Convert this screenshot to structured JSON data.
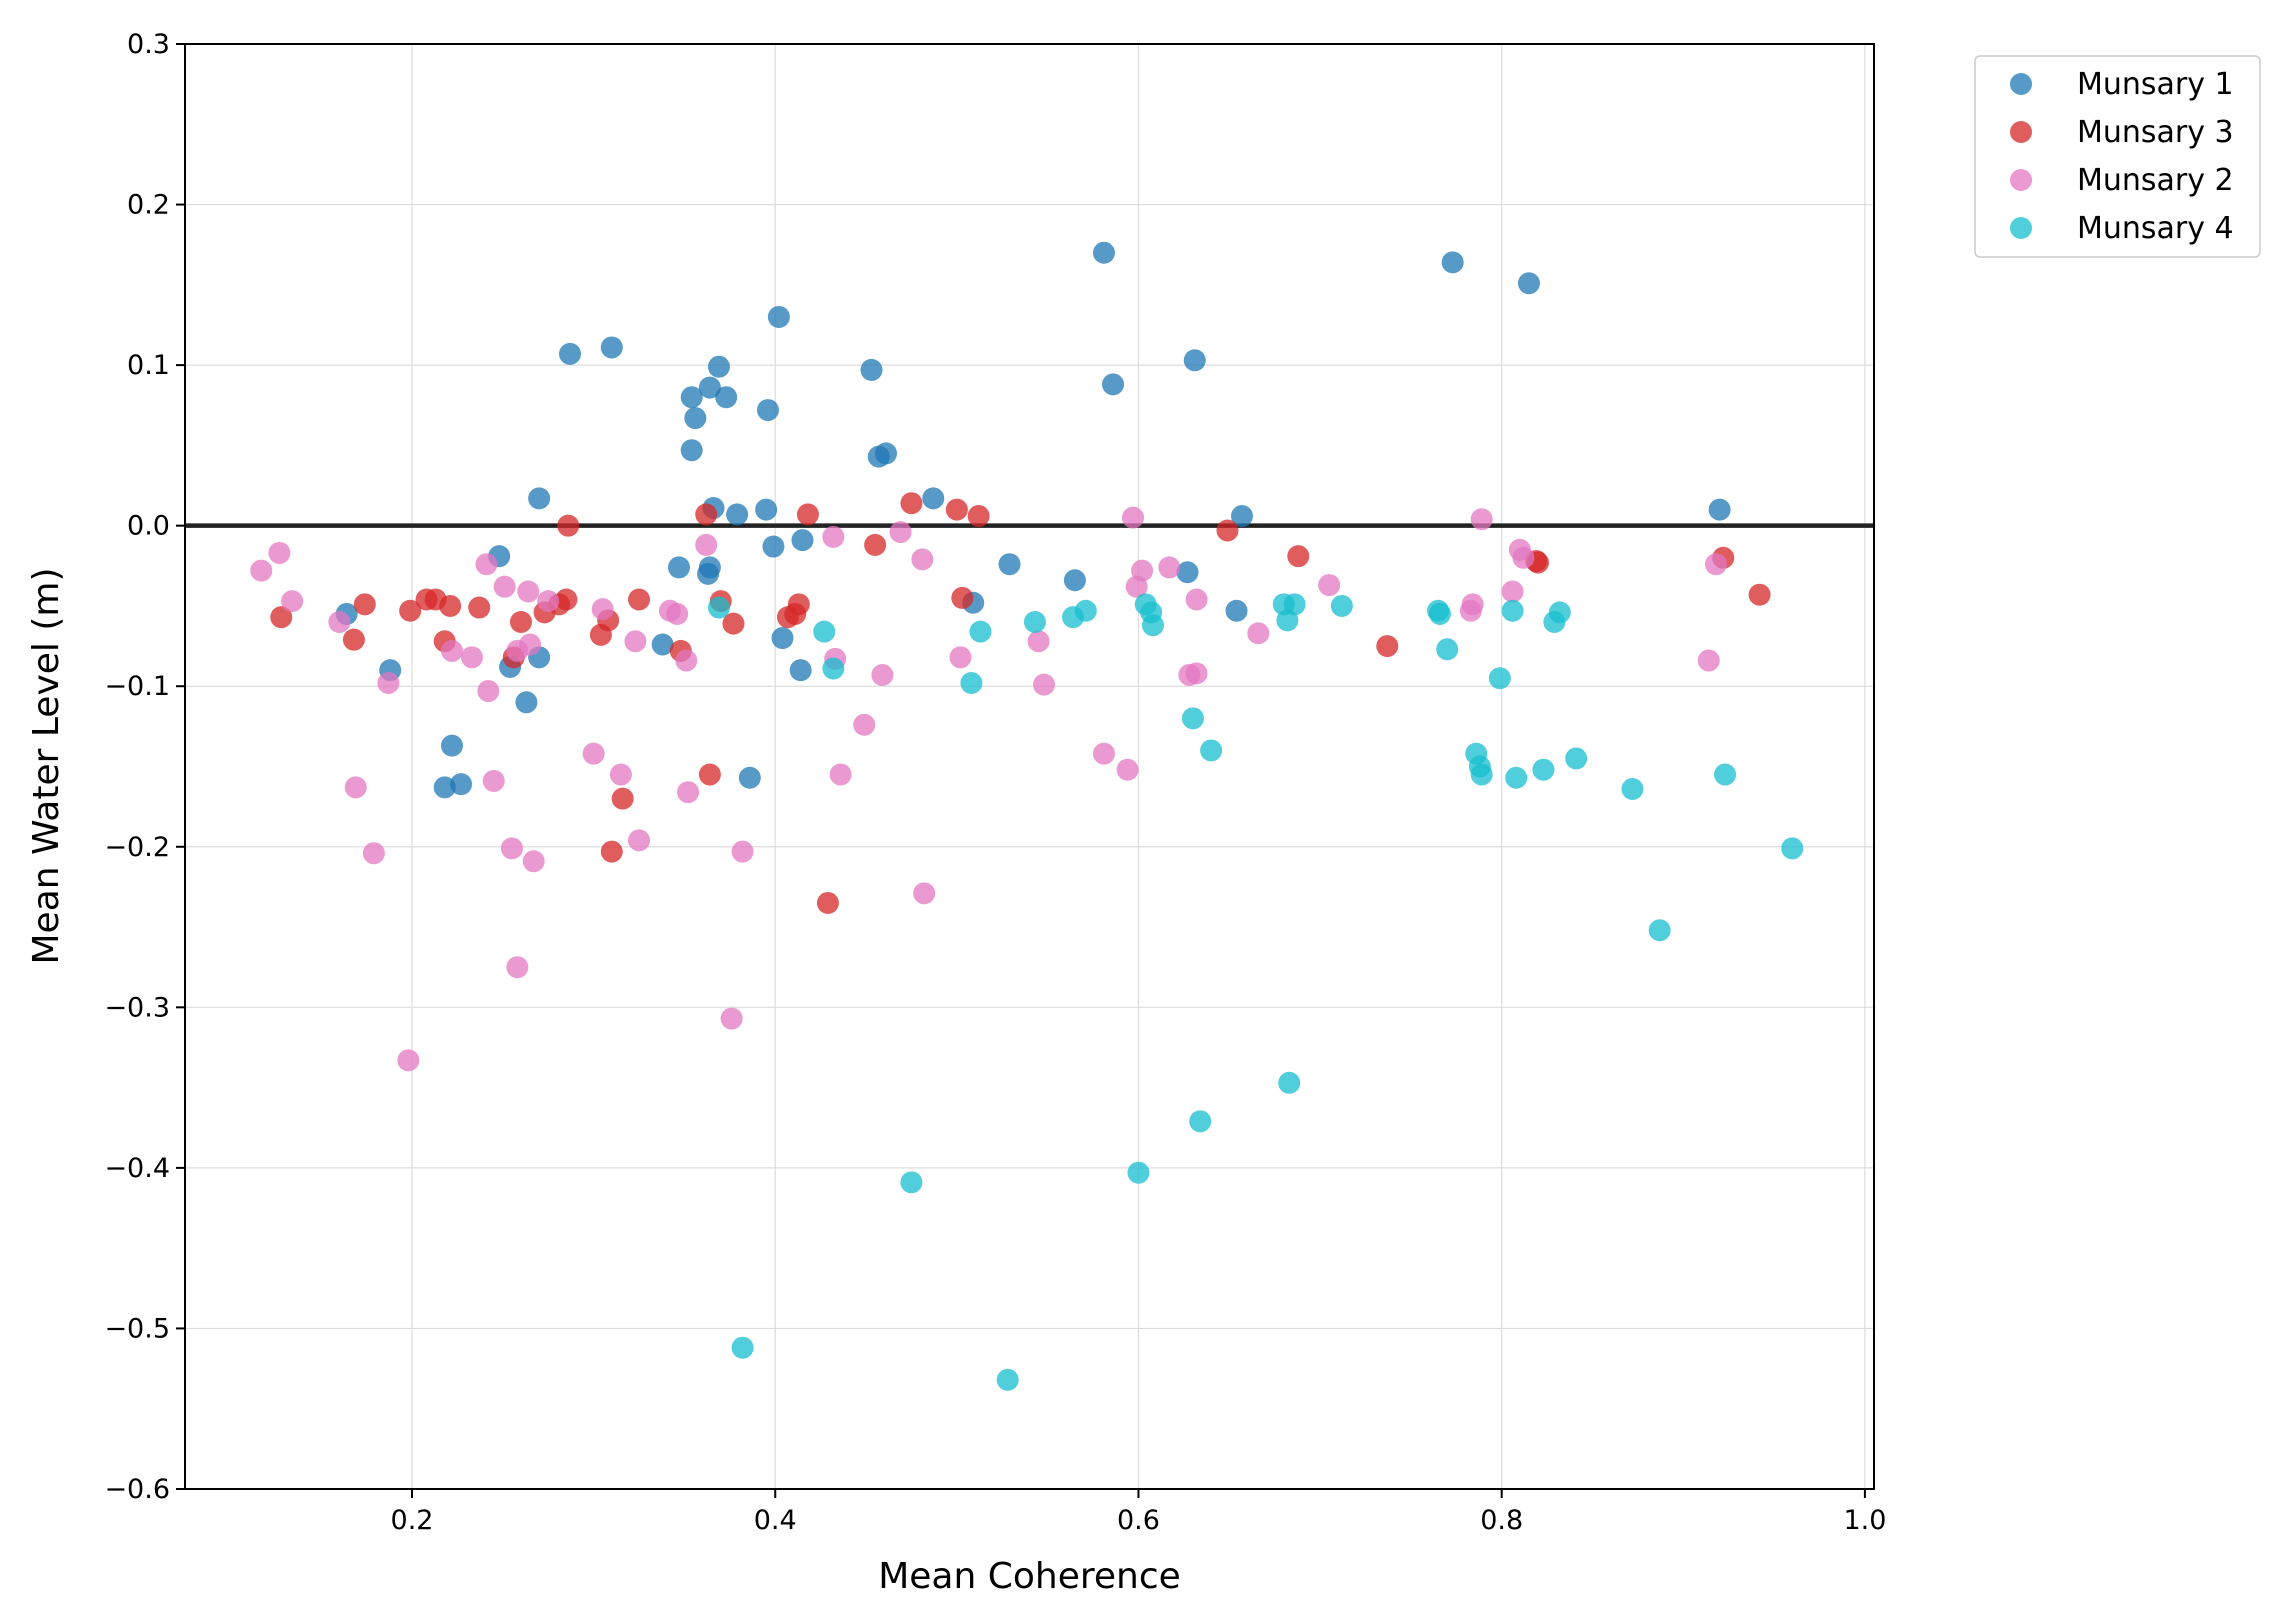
{
  "chart_data": {
    "type": "scatter",
    "title": "",
    "xlabel": "Mean Coherence",
    "ylabel": "Mean Water Level (m)",
    "xlim": [
      0.075,
      1.005
    ],
    "ylim": [
      -0.6,
      0.3
    ],
    "xticks": [
      0.2,
      0.4,
      0.6,
      0.8,
      1.0
    ],
    "xtick_labels": [
      "0.2",
      "0.4",
      "0.6",
      "0.8",
      "1.0"
    ],
    "yticks": [
      -0.6,
      -0.5,
      -0.4,
      -0.3,
      -0.2,
      -0.1,
      0.0,
      0.1,
      0.2,
      0.3
    ],
    "ytick_labels": [
      "−0.6",
      "−0.5",
      "−0.4",
      "−0.3",
      "−0.2",
      "−0.1",
      "0.0",
      "0.1",
      "0.2",
      "0.3"
    ],
    "grid": true,
    "legend_position": "outside-top-right",
    "reference_line_y": 0.0,
    "series": [
      {
        "name": "Munsary 1",
        "color": "#1f77b4",
        "points": [
          [
            0.164,
            -0.055
          ],
          [
            0.188,
            -0.09
          ],
          [
            0.218,
            -0.163
          ],
          [
            0.222,
            -0.137
          ],
          [
            0.227,
            -0.161
          ],
          [
            0.248,
            -0.019
          ],
          [
            0.254,
            -0.088
          ],
          [
            0.263,
            -0.11
          ],
          [
            0.27,
            -0.082
          ],
          [
            0.27,
            0.017
          ],
          [
            0.287,
            0.107
          ],
          [
            0.31,
            0.111
          ],
          [
            0.338,
            -0.074
          ],
          [
            0.347,
            -0.026
          ],
          [
            0.354,
            0.047
          ],
          [
            0.354,
            0.08
          ],
          [
            0.356,
            0.067
          ],
          [
            0.363,
            -0.03
          ],
          [
            0.364,
            -0.026
          ],
          [
            0.364,
            0.086
          ],
          [
            0.366,
            0.011
          ],
          [
            0.369,
            0.099
          ],
          [
            0.373,
            0.08
          ],
          [
            0.379,
            0.007
          ],
          [
            0.386,
            -0.157
          ],
          [
            0.395,
            0.01
          ],
          [
            0.396,
            0.072
          ],
          [
            0.399,
            -0.013
          ],
          [
            0.402,
            0.13
          ],
          [
            0.404,
            -0.07
          ],
          [
            0.414,
            -0.09
          ],
          [
            0.415,
            -0.009
          ],
          [
            0.453,
            0.097
          ],
          [
            0.457,
            0.043
          ],
          [
            0.461,
            0.045
          ],
          [
            0.487,
            0.017
          ],
          [
            0.509,
            -0.048
          ],
          [
            0.529,
            -0.024
          ],
          [
            0.565,
            -0.034
          ],
          [
            0.581,
            0.17
          ],
          [
            0.586,
            0.088
          ],
          [
            0.627,
            -0.029
          ],
          [
            0.631,
            0.103
          ],
          [
            0.654,
            -0.053
          ],
          [
            0.657,
            0.006
          ],
          [
            0.773,
            0.164
          ],
          [
            0.815,
            0.151
          ],
          [
            0.92,
            0.01
          ]
        ]
      },
      {
        "name": "Munsary 3",
        "color": "#d62728",
        "points": [
          [
            0.128,
            -0.057
          ],
          [
            0.168,
            -0.071
          ],
          [
            0.174,
            -0.049
          ],
          [
            0.199,
            -0.053
          ],
          [
            0.208,
            -0.046
          ],
          [
            0.213,
            -0.046
          ],
          [
            0.218,
            -0.072
          ],
          [
            0.221,
            -0.05
          ],
          [
            0.237,
            -0.051
          ],
          [
            0.256,
            -0.082
          ],
          [
            0.26,
            -0.06
          ],
          [
            0.273,
            -0.054
          ],
          [
            0.281,
            -0.049
          ],
          [
            0.285,
            -0.046
          ],
          [
            0.286,
            0.0
          ],
          [
            0.304,
            -0.068
          ],
          [
            0.308,
            -0.059
          ],
          [
            0.31,
            -0.203
          ],
          [
            0.316,
            -0.17
          ],
          [
            0.325,
            -0.046
          ],
          [
            0.348,
            -0.078
          ],
          [
            0.362,
            0.007
          ],
          [
            0.364,
            -0.155
          ],
          [
            0.37,
            -0.047
          ],
          [
            0.377,
            -0.061
          ],
          [
            0.407,
            -0.057
          ],
          [
            0.411,
            -0.055
          ],
          [
            0.413,
            -0.049
          ],
          [
            0.418,
            0.007
          ],
          [
            0.429,
            -0.235
          ],
          [
            0.455,
            -0.012
          ],
          [
            0.475,
            0.014
          ],
          [
            0.5,
            0.01
          ],
          [
            0.503,
            -0.045
          ],
          [
            0.512,
            0.006
          ],
          [
            0.649,
            -0.003
          ],
          [
            0.688,
            -0.019
          ],
          [
            0.737,
            -0.075
          ],
          [
            0.819,
            -0.022
          ],
          [
            0.82,
            -0.023
          ],
          [
            0.922,
            -0.02
          ],
          [
            0.942,
            -0.043
          ]
        ]
      },
      {
        "name": "Munsary 2",
        "color": "#e377c2",
        "points": [
          [
            0.117,
            -0.028
          ],
          [
            0.127,
            -0.017
          ],
          [
            0.134,
            -0.047
          ],
          [
            0.16,
            -0.06
          ],
          [
            0.169,
            -0.163
          ],
          [
            0.179,
            -0.204
          ],
          [
            0.187,
            -0.098
          ],
          [
            0.198,
            -0.333
          ],
          [
            0.222,
            -0.078
          ],
          [
            0.233,
            -0.082
          ],
          [
            0.241,
            -0.024
          ],
          [
            0.242,
            -0.103
          ],
          [
            0.245,
            -0.159
          ],
          [
            0.251,
            -0.038
          ],
          [
            0.255,
            -0.201
          ],
          [
            0.258,
            -0.078
          ],
          [
            0.258,
            -0.275
          ],
          [
            0.264,
            -0.041
          ],
          [
            0.265,
            -0.074
          ],
          [
            0.267,
            -0.209
          ],
          [
            0.275,
            -0.047
          ],
          [
            0.3,
            -0.142
          ],
          [
            0.305,
            -0.052
          ],
          [
            0.315,
            -0.155
          ],
          [
            0.323,
            -0.072
          ],
          [
            0.325,
            -0.196
          ],
          [
            0.342,
            -0.053
          ],
          [
            0.346,
            -0.055
          ],
          [
            0.351,
            -0.084
          ],
          [
            0.352,
            -0.166
          ],
          [
            0.362,
            -0.012
          ],
          [
            0.376,
            -0.307
          ],
          [
            0.382,
            -0.203
          ],
          [
            0.432,
            -0.007
          ],
          [
            0.433,
            -0.083
          ],
          [
            0.436,
            -0.155
          ],
          [
            0.449,
            -0.124
          ],
          [
            0.459,
            -0.093
          ],
          [
            0.469,
            -0.004
          ],
          [
            0.481,
            -0.021
          ],
          [
            0.482,
            -0.229
          ],
          [
            0.502,
            -0.082
          ],
          [
            0.545,
            -0.072
          ],
          [
            0.548,
            -0.099
          ],
          [
            0.581,
            -0.142
          ],
          [
            0.594,
            -0.152
          ],
          [
            0.597,
            0.005
          ],
          [
            0.599,
            -0.038
          ],
          [
            0.602,
            -0.028
          ],
          [
            0.617,
            -0.026
          ],
          [
            0.628,
            -0.093
          ],
          [
            0.632,
            -0.046
          ],
          [
            0.632,
            -0.092
          ],
          [
            0.666,
            -0.067
          ],
          [
            0.705,
            -0.037
          ],
          [
            0.783,
            -0.053
          ],
          [
            0.784,
            -0.049
          ],
          [
            0.789,
            0.004
          ],
          [
            0.806,
            -0.041
          ],
          [
            0.81,
            -0.015
          ],
          [
            0.812,
            -0.02
          ],
          [
            0.914,
            -0.084
          ],
          [
            0.918,
            -0.024
          ]
        ]
      },
      {
        "name": "Munsary 4",
        "color": "#17becf",
        "points": [
          [
            0.369,
            -0.051
          ],
          [
            0.382,
            -0.512
          ],
          [
            0.427,
            -0.066
          ],
          [
            0.432,
            -0.089
          ],
          [
            0.475,
            -0.409
          ],
          [
            0.508,
            -0.098
          ],
          [
            0.513,
            -0.066
          ],
          [
            0.528,
            -0.532
          ],
          [
            0.543,
            -0.06
          ],
          [
            0.564,
            -0.057
          ],
          [
            0.571,
            -0.053
          ],
          [
            0.6,
            -0.403
          ],
          [
            0.604,
            -0.049
          ],
          [
            0.607,
            -0.054
          ],
          [
            0.608,
            -0.062
          ],
          [
            0.63,
            -0.12
          ],
          [
            0.634,
            -0.371
          ],
          [
            0.64,
            -0.14
          ],
          [
            0.68,
            -0.049
          ],
          [
            0.682,
            -0.059
          ],
          [
            0.683,
            -0.347
          ],
          [
            0.686,
            -0.049
          ],
          [
            0.712,
            -0.05
          ],
          [
            0.765,
            -0.053
          ],
          [
            0.766,
            -0.055
          ],
          [
            0.77,
            -0.077
          ],
          [
            0.799,
            -0.095
          ],
          [
            0.786,
            -0.142
          ],
          [
            0.788,
            -0.15
          ],
          [
            0.789,
            -0.155
          ],
          [
            0.806,
            -0.053
          ],
          [
            0.808,
            -0.157
          ],
          [
            0.823,
            -0.152
          ],
          [
            0.829,
            -0.06
          ],
          [
            0.832,
            -0.054
          ],
          [
            0.841,
            -0.145
          ],
          [
            0.872,
            -0.164
          ],
          [
            0.887,
            -0.252
          ],
          [
            0.923,
            -0.155
          ],
          [
            0.96,
            -0.201
          ]
        ]
      }
    ]
  }
}
